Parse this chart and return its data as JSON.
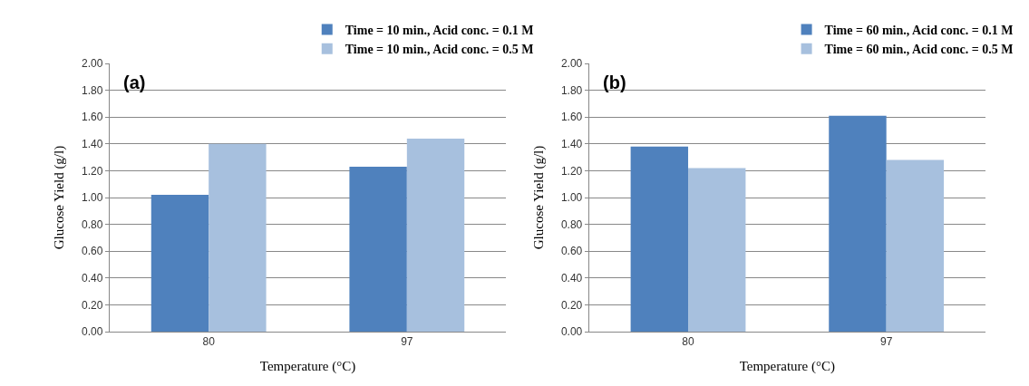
{
  "chart_data": [
    {
      "type": "bar",
      "annotations": [
        "(a)"
      ],
      "xlabel": "Temperature (°C)",
      "ylabel": "Glucose Yield (g/l)",
      "categories": [
        "80",
        "97"
      ],
      "series": [
        {
          "name": "Time = 10 min., Acid conc. = 0.1 M",
          "color": "#4f81bd",
          "values": [
            1.02,
            1.23
          ]
        },
        {
          "name": "Time = 10 min., Acid conc. = 0.5 M",
          "color": "#a7c0de",
          "values": [
            1.4,
            1.44
          ]
        }
      ],
      "ylim": [
        0,
        2
      ],
      "yticks": [
        {
          "value": 0,
          "label": "0.00"
        },
        {
          "value": 0.2,
          "label": "0.20"
        },
        {
          "value": 0.4,
          "label": "0.40"
        },
        {
          "value": 0.6,
          "label": "0.60"
        },
        {
          "value": 0.8,
          "label": "0.80"
        },
        {
          "value": 1,
          "label": "1.00"
        },
        {
          "value": 1.2,
          "label": "1.20"
        },
        {
          "value": 1.4,
          "label": "1.40"
        },
        {
          "value": 1.6,
          "label": "1.60"
        },
        {
          "value": 1.8,
          "label": "1.80"
        },
        {
          "value": 2,
          "label": "2.00"
        }
      ],
      "grid": "y",
      "legend": "top right"
    },
    {
      "type": "bar",
      "annotations": [
        "(b)"
      ],
      "xlabel": "Temperature (°C)",
      "ylabel": "Glucose Yield (g/l)",
      "categories": [
        "80",
        "97"
      ],
      "series": [
        {
          "name": "Time = 60 min., Acid conc. = 0.1 M",
          "color": "#4f81bd",
          "values": [
            1.38,
            1.61
          ]
        },
        {
          "name": "Time = 60 min., Acid conc. = 0.5 M",
          "color": "#a7c0de",
          "values": [
            1.22,
            1.28
          ]
        }
      ],
      "ylim": [
        0,
        2
      ],
      "yticks": [
        {
          "value": 0,
          "label": "0.00"
        },
        {
          "value": 0.2,
          "label": "0.20"
        },
        {
          "value": 0.4,
          "label": "0.40"
        },
        {
          "value": 0.6,
          "label": "0.60"
        },
        {
          "value": 0.8,
          "label": "0.80"
        },
        {
          "value": 1,
          "label": "1.00"
        },
        {
          "value": 1.2,
          "label": "1.20"
        },
        {
          "value": 1.4,
          "label": "1.40"
        },
        {
          "value": 1.6,
          "label": "1.60"
        },
        {
          "value": 1.8,
          "label": "1.80"
        },
        {
          "value": 2,
          "label": "2.00"
        }
      ],
      "grid": "y",
      "legend": "top right"
    }
  ]
}
